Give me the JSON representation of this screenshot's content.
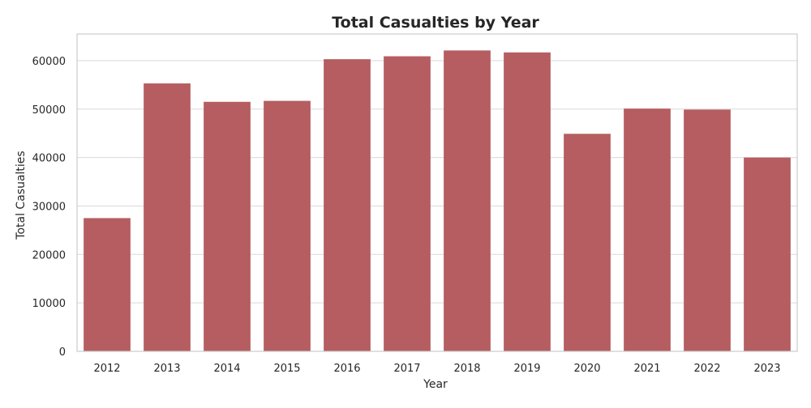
{
  "chart_data": {
    "type": "bar",
    "title": "Total Casualties by Year",
    "xlabel": "Year",
    "ylabel": "Total Casualties",
    "categories": [
      "2012",
      "2013",
      "2014",
      "2015",
      "2016",
      "2017",
      "2018",
      "2019",
      "2020",
      "2021",
      "2022",
      "2023"
    ],
    "values": [
      27500,
      55300,
      51500,
      51700,
      60300,
      60900,
      62100,
      61700,
      44900,
      50100,
      49900,
      40000
    ],
    "ylim": [
      0,
      65500
    ],
    "yticks": [
      0,
      10000,
      20000,
      30000,
      40000,
      50000,
      60000
    ],
    "grid": "horizontal",
    "bar_color": "#b55d60",
    "grid_color": "#d9d9d9",
    "frame_color": "#cccccc"
  }
}
